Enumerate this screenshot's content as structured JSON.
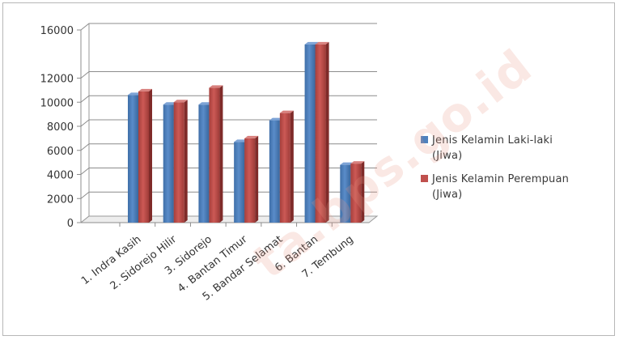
{
  "chart_data": {
    "type": "bar",
    "categories": [
      "1. Indra Kasih",
      "2. Sidorejo Hilir",
      "3. Sidorejo",
      "4. Bantan Timur",
      "5. Bandar Selamat",
      "6. Bantan",
      "7. Tembung"
    ],
    "series": [
      {
        "name": "Jenis Kelamin Laki-laki (Jiwa)",
        "color": "#4f81bd",
        "values": [
          10600,
          9800,
          9800,
          6700,
          8500,
          14800,
          4800
        ]
      },
      {
        "name": "Jenis Kelamin Perempuan (Jiwa)",
        "color": "#c0504d",
        "values": [
          10900,
          10000,
          11200,
          7000,
          9100,
          14800,
          4900
        ]
      }
    ],
    "yticks": [
      "0",
      "2000",
      "4000",
      "6000",
      "8000",
      "10000",
      "12000",
      "16000"
    ],
    "ylim": [
      0,
      16000
    ],
    "grid": true,
    "legend": "right",
    "watermark": "ta.bps.go.id"
  },
  "legend": {
    "items": [
      {
        "line1": "Jenis Kelamin Laki-laki",
        "line2": "(Jiwa)",
        "color": "#4f81bd"
      },
      {
        "line1": "Jenis Kelamin Perempuan",
        "line2": "(Jiwa)",
        "color": "#c0504d"
      }
    ]
  }
}
